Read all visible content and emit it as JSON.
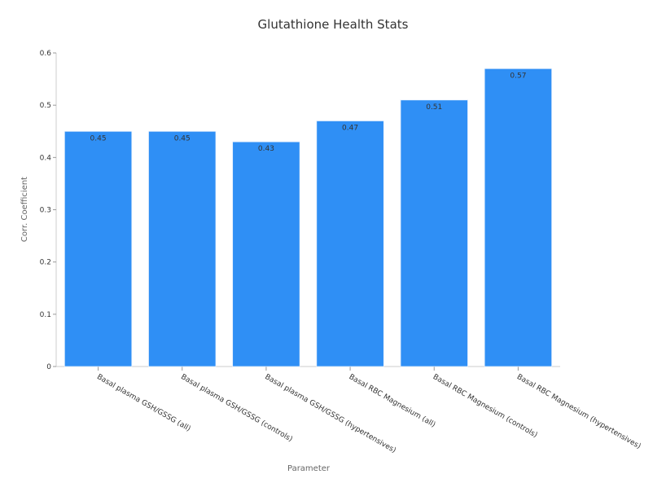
{
  "chart_data": {
    "type": "bar",
    "title": "Glutathione Health Stats",
    "xlabel": "Parameter",
    "ylabel": "Corr. Coefficient",
    "categories": [
      "Basal plasma GSH/GSSG (all)",
      "Basal plasma GSH/GSSG (controls)",
      "Basal plasma GSH/GSSG (hypertensives)",
      "Basal RBC Magnesium (all)",
      "Basal RBC Magnesium (controls)",
      "Basal RBC Magnesium (hypertensives)"
    ],
    "values": [
      0.45,
      0.45,
      0.43,
      0.47,
      0.51,
      0.57
    ],
    "value_labels": [
      "0.45",
      "0.45",
      "0.43",
      "0.47",
      "0.51",
      "0.57"
    ],
    "ylim": [
      0,
      0.6
    ],
    "yticks": [
      {
        "value": 0,
        "label": "0"
      },
      {
        "value": 0.1,
        "label": "0.1"
      },
      {
        "value": 0.2,
        "label": "0.2"
      },
      {
        "value": 0.3,
        "label": "0.3"
      },
      {
        "value": 0.4,
        "label": "0.4"
      },
      {
        "value": 0.5,
        "label": "0.5"
      },
      {
        "value": 0.6,
        "label": "0.6"
      }
    ],
    "bar_color": "#2f8ff5",
    "grid": false,
    "legend": "none"
  }
}
